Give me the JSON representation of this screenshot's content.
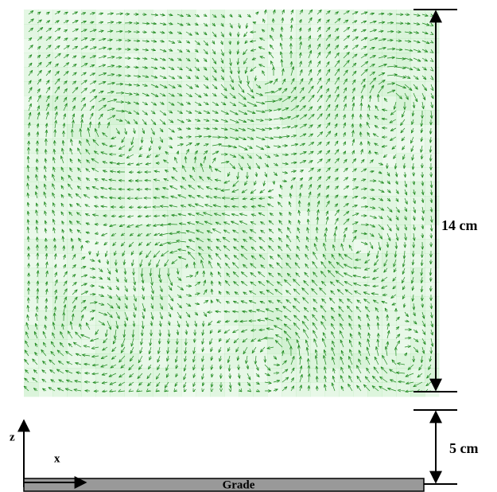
{
  "dimensions": {
    "height": "14 cm",
    "gap": "5 cm"
  },
  "axes": {
    "z": "z",
    "x": "x"
  },
  "base": {
    "label": "Grade"
  }
}
